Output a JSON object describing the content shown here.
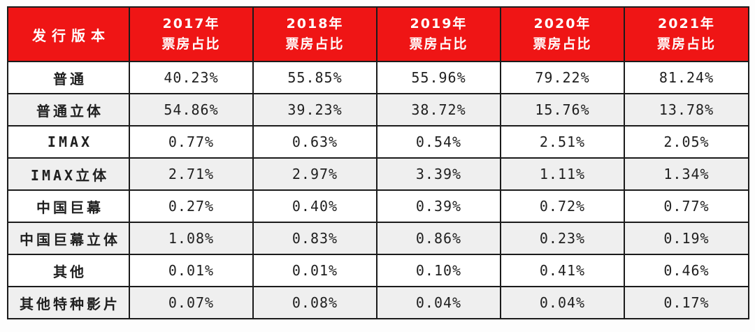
{
  "colors": {
    "header_bg": "#EF1515",
    "header_text": "#FFFFFF",
    "border": "#1B1B1B",
    "row_bg": "#FFFFFF",
    "row_alt_bg": "#EFEFEF",
    "body_text": "#1F1F1F"
  },
  "chart_data": {
    "type": "table",
    "title": "",
    "corner_header": "发行版本",
    "header_subtitle": "票房占比",
    "categories": [
      "2017年",
      "2018年",
      "2019年",
      "2020年",
      "2021年"
    ],
    "column_headers": [
      {
        "line1": "2017年",
        "line2": "票房占比"
      },
      {
        "line1": "2018年",
        "line2": "票房占比"
      },
      {
        "line1": "2019年",
        "line2": "票房占比"
      },
      {
        "line1": "2020年",
        "line2": "票房占比"
      },
      {
        "line1": "2021年",
        "line2": "票房占比"
      }
    ],
    "rows": [
      {
        "label": "普通",
        "values": [
          "40.23%",
          "55.85%",
          "55.96%",
          "79.22%",
          "81.24%"
        ]
      },
      {
        "label": "普通立体",
        "values": [
          "54.86%",
          "39.23%",
          "38.72%",
          "15.76%",
          "13.78%"
        ]
      },
      {
        "label": "IMAX",
        "values": [
          "0.77%",
          "0.63%",
          "0.54%",
          "2.51%",
          "2.05%"
        ]
      },
      {
        "label": "IMAX立体",
        "values": [
          "2.71%",
          "2.97%",
          "3.39%",
          "1.11%",
          "1.34%"
        ]
      },
      {
        "label": "中国巨幕",
        "values": [
          "0.27%",
          "0.40%",
          "0.39%",
          "0.72%",
          "0.77%"
        ]
      },
      {
        "label": "中国巨幕立体",
        "values": [
          "1.08%",
          "0.83%",
          "0.86%",
          "0.23%",
          "0.19%"
        ]
      },
      {
        "label": "其他",
        "values": [
          "0.01%",
          "0.01%",
          "0.10%",
          "0.41%",
          "0.46%"
        ]
      },
      {
        "label": "其他特种影片",
        "values": [
          "0.07%",
          "0.08%",
          "0.04%",
          "0.04%",
          "0.17%"
        ]
      }
    ],
    "series": [
      {
        "name": "普通",
        "values": [
          40.23,
          55.85,
          55.96,
          79.22,
          81.24
        ]
      },
      {
        "name": "普通立体",
        "values": [
          54.86,
          39.23,
          38.72,
          15.76,
          13.78
        ]
      },
      {
        "name": "IMAX",
        "values": [
          0.77,
          0.63,
          0.54,
          2.51,
          2.05
        ]
      },
      {
        "name": "IMAX立体",
        "values": [
          2.71,
          2.97,
          3.39,
          1.11,
          1.34
        ]
      },
      {
        "name": "中国巨幕",
        "values": [
          0.27,
          0.4,
          0.39,
          0.72,
          0.77
        ]
      },
      {
        "name": "中国巨幕立体",
        "values": [
          1.08,
          0.83,
          0.86,
          0.23,
          0.19
        ]
      },
      {
        "name": "其他",
        "values": [
          0.01,
          0.01,
          0.1,
          0.41,
          0.46
        ]
      },
      {
        "name": "其他特种影片",
        "values": [
          0.07,
          0.08,
          0.04,
          0.04,
          0.17
        ]
      }
    ],
    "unit": "%"
  }
}
